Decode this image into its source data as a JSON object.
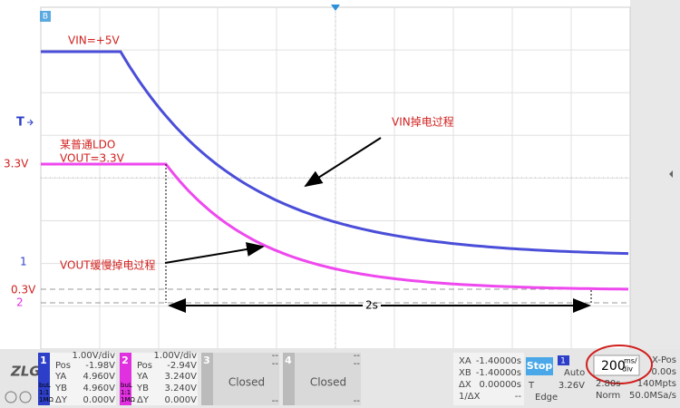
{
  "screen": {
    "marker": "B",
    "vin_label": "VIN=+5V",
    "trigger_marker": "T",
    "ldo_line1": "某普通LDO",
    "ldo_line2": "VOUT=3.3V",
    "level_33": "3.3V",
    "vin_note": "VIN掉电过程",
    "ch1_marker": "1",
    "vout_note": "VOUT缓慢掉电过程",
    "level_03": "0.3V",
    "ch2_marker": "2",
    "duration": "2s"
  },
  "channels": [
    {
      "number": "1",
      "scale": "1.00V/div",
      "pos_label": "Pos",
      "pos": "-1.98V",
      "ya_label": "YA",
      "ya": "4.960V",
      "yb_label": "YB",
      "yb": "4.960V",
      "dy_label": "ΔY",
      "dy": "0.000V",
      "coupling": "buL",
      "ratio": "1:1",
      "impedance": "1MΩ"
    },
    {
      "number": "2",
      "scale": "1.00V/div",
      "pos_label": "Pos",
      "pos": "-2.94V",
      "ya_label": "YA",
      "ya": "3.240V",
      "yb_label": "YB",
      "yb": "3.240V",
      "dy_label": "ΔY",
      "dy": "0.000V",
      "coupling": "buL",
      "ratio": "1:1",
      "impedance": "1MΩ"
    },
    {
      "number": "3",
      "scale": "--",
      "pos": "--",
      "status": "Closed",
      "dy": "--"
    },
    {
      "number": "4",
      "scale": "--",
      "pos": "--",
      "status": "Closed",
      "dy": "--"
    }
  ],
  "cursors": {
    "xa_label": "XA",
    "xa": "-1.40000s",
    "xb_label": "XB",
    "xb": "-1.40000s",
    "dx_label": "ΔX",
    "dx": "0.00000s",
    "inv_label": "1/ΔX",
    "inv": "--"
  },
  "trigger": {
    "state": "Stop",
    "source": "1",
    "mode": "Auto",
    "t_label": "T",
    "level": "3.26V",
    "type": "Edge"
  },
  "timebase": {
    "value": "200",
    "unit_top": "ms/",
    "unit_bottom": "div",
    "xpos_label": "X-Pos",
    "xpos": "0.00s",
    "length": "2.80s",
    "points": "140Mpts",
    "acq": "Norm",
    "rate": "50.0MSa/s"
  }
}
